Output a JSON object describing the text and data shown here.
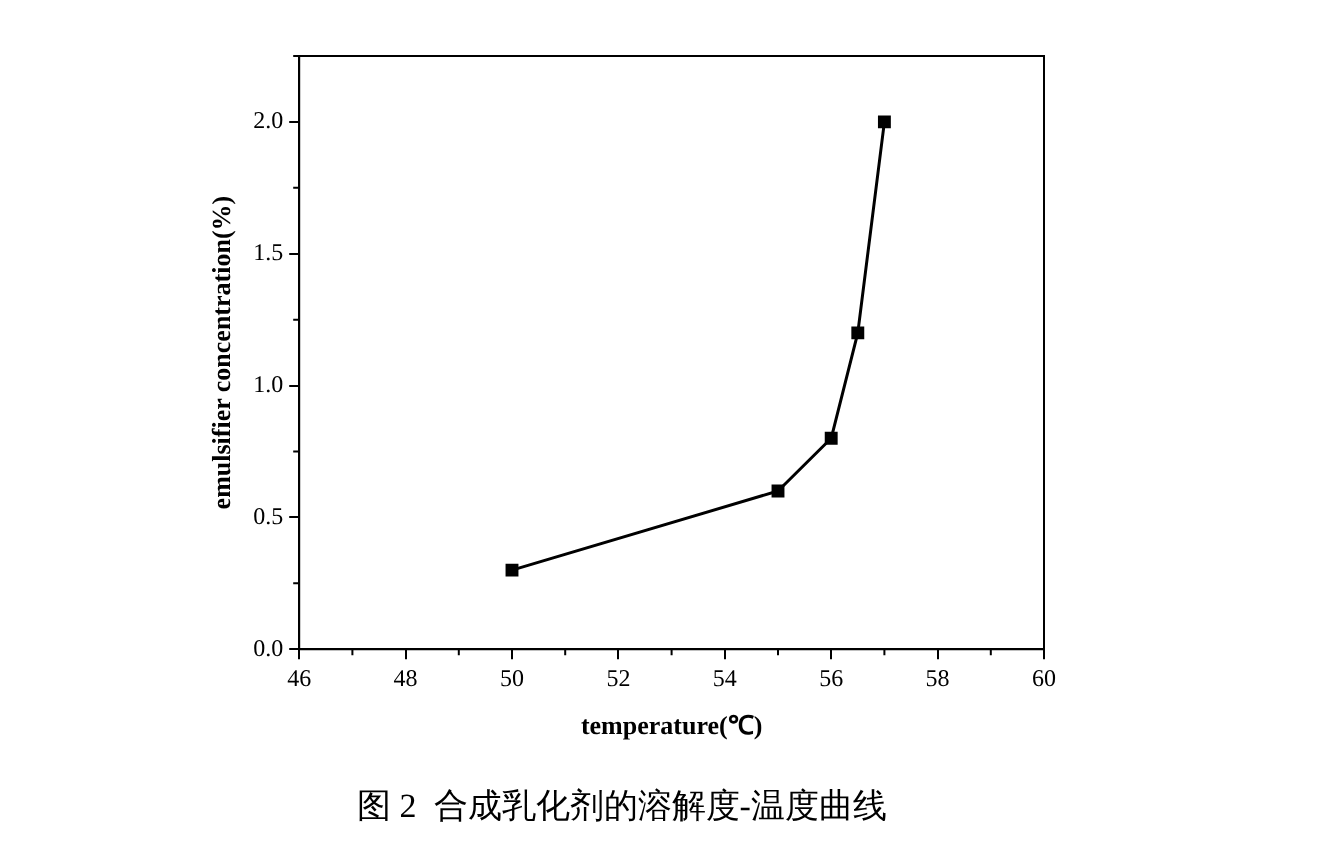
{
  "chart_data": {
    "type": "line",
    "title": "图 2  合成乳化剂的溶解度-温度曲线",
    "xlabel": "temperature(℃)",
    "ylabel": "emulsifier concentration(%)",
    "x": [
      50,
      55,
      56,
      56.5,
      57
    ],
    "series": [
      {
        "color": "#000000",
        "values": [
          0.3,
          0.6,
          0.8,
          1.2,
          2.0
        ]
      }
    ],
    "xlim": [
      46,
      60
    ],
    "xticks": [
      46,
      48,
      50,
      52,
      54,
      56,
      58,
      60
    ],
    "ylim": [
      0,
      2.25
    ],
    "yticks": [
      {
        "value": 0,
        "label": "0.0"
      },
      {
        "value": 0.5,
        "label": "0.5"
      },
      {
        "value": 1,
        "label": "1.0"
      },
      {
        "value": 1.5,
        "label": "1.5"
      },
      {
        "value": 2,
        "label": "2.0"
      }
    ],
    "grid": false,
    "legend": false,
    "marker": "square",
    "line_style": "solid"
  }
}
